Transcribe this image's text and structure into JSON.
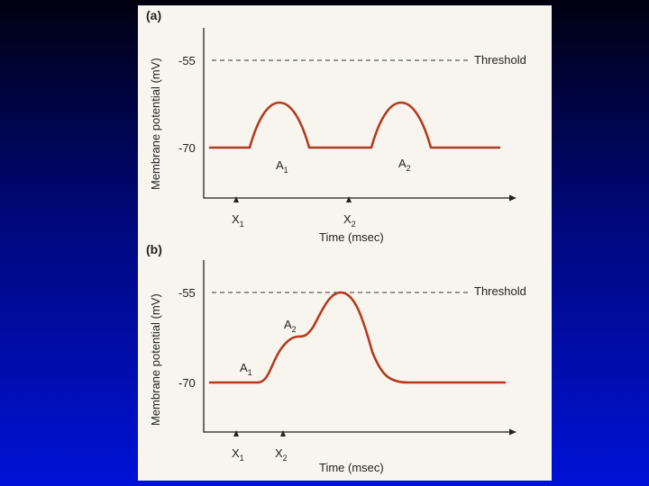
{
  "panel_a": {
    "label": "(a)",
    "ylabel": "Membrane potential (mV)",
    "y_top": "-55",
    "y_bottom": "-70",
    "threshold": "Threshold",
    "x1": "X",
    "x1_sub": "1",
    "x2": "X",
    "x2_sub": "2",
    "a1": "A",
    "a1_sub": "1",
    "a2": "A",
    "a2_sub": "2",
    "xlabel": "Time (msec)"
  },
  "panel_b": {
    "label": "(b)",
    "ylabel": "Membrane potential (mV)",
    "y_top": "-55",
    "y_bottom": "-70",
    "threshold": "Threshold",
    "x1": "X",
    "x1_sub": "1",
    "x2": "X",
    "x2_sub": "2",
    "a1": "A",
    "a1_sub": "1",
    "a2": "A",
    "a2_sub": "2",
    "xlabel": "Time (msec)"
  },
  "colors": {
    "trace": "#b43a20",
    "background": "#f7f5ee"
  }
}
